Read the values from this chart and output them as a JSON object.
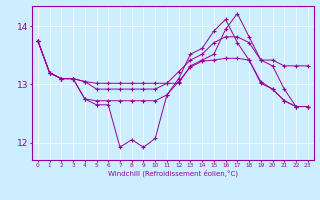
{
  "xlabel": "Windchill (Refroidissement éolien,°C)",
  "bg_color": "#cceeff",
  "line_color": "#990099",
  "xlim": [
    -0.5,
    23.5
  ],
  "ylim": [
    11.7,
    14.35
  ],
  "yticks": [
    12,
    13,
    14
  ],
  "xticks": [
    0,
    1,
    2,
    3,
    4,
    5,
    6,
    7,
    8,
    9,
    10,
    11,
    12,
    13,
    14,
    15,
    16,
    17,
    18,
    19,
    20,
    21,
    22,
    23
  ],
  "series": [
    [
      13.75,
      13.2,
      13.1,
      13.1,
      12.75,
      12.65,
      12.65,
      11.92,
      12.05,
      11.92,
      12.07,
      12.82,
      13.1,
      13.52,
      13.62,
      13.92,
      14.12,
      13.72,
      13.42,
      13.02,
      12.92,
      12.72,
      12.62,
      12.62
    ],
    [
      13.75,
      13.2,
      13.1,
      13.1,
      12.75,
      12.72,
      12.72,
      12.72,
      12.72,
      12.72,
      12.72,
      12.82,
      13.05,
      13.3,
      13.4,
      13.42,
      13.45,
      13.45,
      13.42,
      13.05,
      12.92,
      12.72,
      12.62,
      12.62
    ],
    [
      13.75,
      13.2,
      13.1,
      13.1,
      13.05,
      12.92,
      12.92,
      12.92,
      12.92,
      12.92,
      12.92,
      13.02,
      13.22,
      13.42,
      13.52,
      13.72,
      13.82,
      13.82,
      13.72,
      13.42,
      13.42,
      13.32,
      13.32,
      13.32
    ],
    [
      13.75,
      13.2,
      13.1,
      13.1,
      13.05,
      13.02,
      13.02,
      13.02,
      13.02,
      13.02,
      13.02,
      13.02,
      13.02,
      13.32,
      13.42,
      13.52,
      13.95,
      14.22,
      13.82,
      13.42,
      13.32,
      12.92,
      12.62,
      12.62
    ]
  ]
}
